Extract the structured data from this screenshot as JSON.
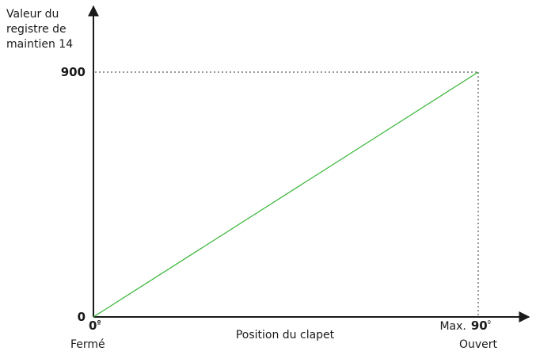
{
  "chart_data": {
    "type": "line",
    "ylabel": [
      "Valeur du",
      "registre de",
      "maintien 14"
    ],
    "xlabel": "Position du clapet",
    "x": [
      0,
      90
    ],
    "series": [
      {
        "values": [
          0,
          900
        ]
      }
    ],
    "xlim": [
      0,
      90
    ],
    "ylim": [
      0,
      900
    ],
    "grid": false,
    "y_ticks": [
      {
        "value": 0,
        "label": "0"
      },
      {
        "value": 900,
        "label": "900"
      }
    ],
    "x_ticks": [
      {
        "value": 0,
        "label": "0",
        "unit": "º",
        "caption": "Fermé"
      },
      {
        "value": 90,
        "prefix": "Max.",
        "label": "90",
        "unit": "º",
        "caption": "Ouvert"
      }
    ],
    "reference_lines": [
      {
        "x": 90,
        "y": 900,
        "style": "dotted"
      }
    ],
    "colors": {
      "series": "#33b533",
      "axis": "#1a1a1a"
    }
  }
}
